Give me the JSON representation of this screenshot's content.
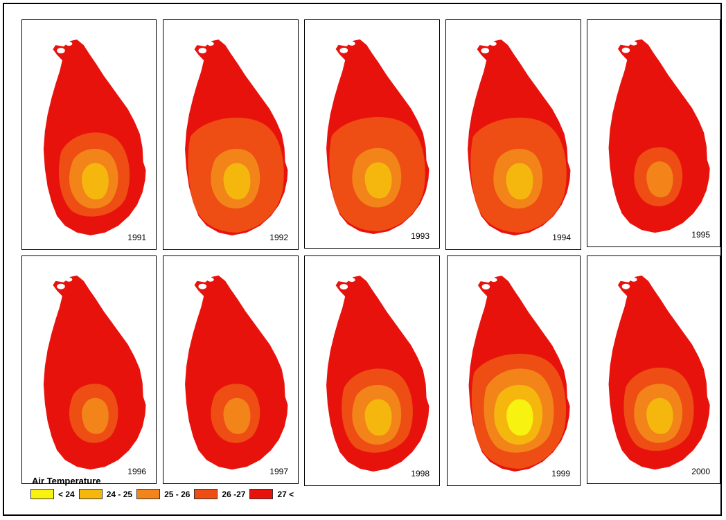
{
  "legend": {
    "title": "Air Temperature",
    "classes": [
      {
        "label": "< 24",
        "color": "#f7f20f"
      },
      {
        "label": "24 - 25",
        "color": "#f5b70d"
      },
      {
        "label": "25 - 26",
        "color": "#f2841a"
      },
      {
        "label": "26 -27",
        "color": "#ee4d14"
      },
      {
        "label": "27 <",
        "color": "#e8120d"
      }
    ]
  },
  "panels": [
    {
      "year": "1991",
      "zones": [
        4,
        3,
        2,
        1
      ]
    },
    {
      "year": "1992",
      "zones": [
        3,
        3,
        2,
        1
      ]
    },
    {
      "year": "1993",
      "zones": [
        3,
        3,
        2,
        1
      ]
    },
    {
      "year": "1994",
      "zones": [
        3,
        3,
        2,
        1
      ]
    },
    {
      "year": "1995",
      "zones": [
        4,
        4,
        3,
        2
      ]
    },
    {
      "year": "1996",
      "zones": [
        4,
        4,
        3,
        2
      ]
    },
    {
      "year": "1997",
      "zones": [
        4,
        4,
        3,
        2
      ]
    },
    {
      "year": "1998",
      "zones": [
        4,
        3,
        2,
        1
      ]
    },
    {
      "year": "1999",
      "zones": [
        3,
        2,
        1,
        0
      ]
    },
    {
      "year": "2000",
      "zones": [
        4,
        3,
        2,
        1
      ]
    }
  ]
}
